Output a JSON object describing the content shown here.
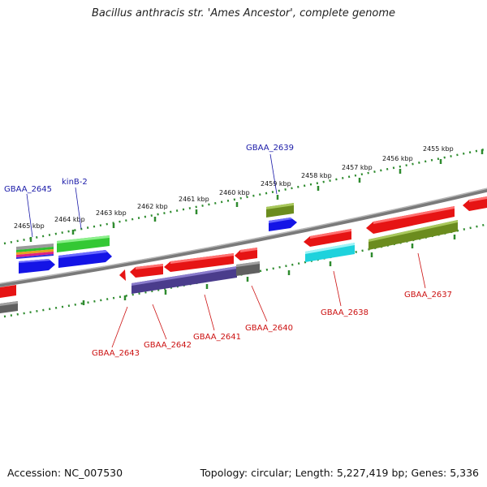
{
  "title": "Bacillus anthracis str. 'Ames Ancestor', complete genome",
  "footer": {
    "accession": "Accession: NC_007530",
    "stats": "Topology: circular; Length: 5,227,419 bp; Genes: 5,336"
  },
  "ruler_ticks": [
    "2465 kbp",
    "2464 kbp",
    "2463 kbp",
    "2462 kbp",
    "2461 kbp",
    "2460 kbp",
    "2459 kbp",
    "2458 kbp",
    "2457 kbp",
    "2456 kbp",
    "2455 kbp"
  ],
  "top_labels": [
    "GBAA_2645",
    "kinB-2",
    "GBAA_2639"
  ],
  "bottom_labels": [
    "GBAA_2643",
    "GBAA_2642",
    "GBAA_2641",
    "GBAA_2640",
    "GBAA_2638",
    "GBAA_2637"
  ],
  "colors": {
    "backbone": "#8c8c8c",
    "ruler": "#2e8b2e",
    "forward_cds": "#1414e6",
    "forward_gene": "#34c834",
    "reverse_gene": "#e61414",
    "olive_feature": "#6b8c1e",
    "cyan_feature": "#1ed2dc",
    "purple_feature": "#4a3c8c",
    "gray_feature": "#606060",
    "label_blue": "#1a1aa8",
    "label_red": "#cc1111"
  }
}
